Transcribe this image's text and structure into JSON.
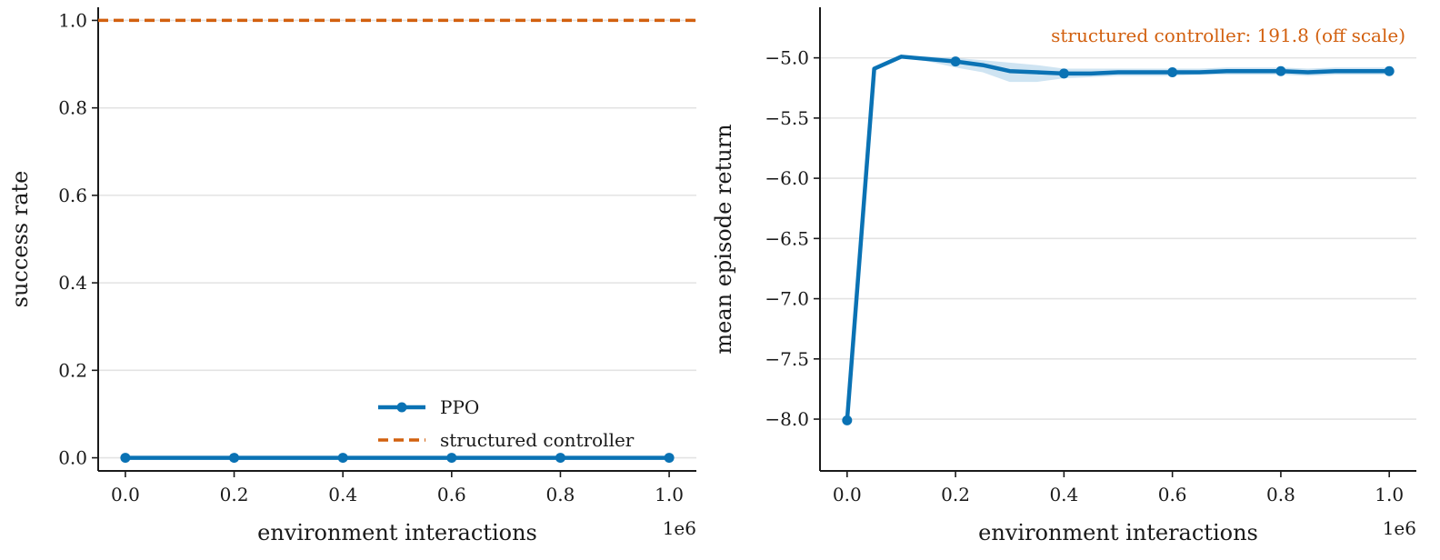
{
  "colors": {
    "ppo": "#0a72b4",
    "structured": "#d2600f",
    "band": "#a8cde8"
  },
  "chart_data": [
    {
      "type": "line",
      "xlabel": "environment interactions",
      "ylabel": "success rate",
      "x_offset_label": "1e6",
      "xlim": [
        -0.05,
        1.05
      ],
      "ylim": [
        -0.03,
        1.03
      ],
      "x_ticks": [
        0.0,
        0.2,
        0.4,
        0.6,
        0.8,
        1.0
      ],
      "x_tick_labels": [
        "0.0",
        "0.2",
        "0.4",
        "0.6",
        "0.8",
        "1.0"
      ],
      "y_ticks": [
        0.0,
        0.2,
        0.4,
        0.6,
        0.8,
        1.0
      ],
      "y_tick_labels": [
        "0.0",
        "0.2",
        "0.4",
        "0.6",
        "0.8",
        "1.0"
      ],
      "grid": "horizontal",
      "legend_position": "lower-right",
      "series": [
        {
          "name": "PPO",
          "style": "solid-markers",
          "x": [
            0.0,
            0.05,
            0.1,
            0.15,
            0.2,
            0.25,
            0.3,
            0.35,
            0.4,
            0.45,
            0.5,
            0.55,
            0.6,
            0.65,
            0.7,
            0.75,
            0.8,
            0.85,
            0.9,
            0.95,
            1.0
          ],
          "y": [
            0,
            0,
            0,
            0,
            0,
            0,
            0,
            0,
            0,
            0,
            0,
            0,
            0,
            0,
            0,
            0,
            0,
            0,
            0,
            0,
            0
          ],
          "marker_x": [
            0.0,
            0.2,
            0.4,
            0.6,
            0.8,
            1.0
          ]
        },
        {
          "name": "structured controller",
          "style": "dashed-hline",
          "y": 1.0
        }
      ]
    },
    {
      "type": "line",
      "xlabel": "environment interactions",
      "ylabel": "mean episode return",
      "x_offset_label": "1e6",
      "xlim": [
        -0.05,
        1.05
      ],
      "ylim": [
        -8.43,
        -4.58
      ],
      "x_ticks": [
        0.0,
        0.2,
        0.4,
        0.6,
        0.8,
        1.0
      ],
      "x_tick_labels": [
        "0.0",
        "0.2",
        "0.4",
        "0.6",
        "0.8",
        "1.0"
      ],
      "y_ticks": [
        -5.0,
        -5.5,
        -6.0,
        -6.5,
        -7.0,
        -7.5,
        -8.0
      ],
      "y_tick_labels": [
        "−5.0",
        "−5.5",
        "−6.0",
        "−6.5",
        "−7.0",
        "−7.5",
        "−8.0"
      ],
      "grid": "horizontal",
      "annotation": "structured controller: 191.8 (off scale)",
      "series": [
        {
          "name": "PPO",
          "style": "solid-markers-band",
          "x": [
            0.0,
            0.05,
            0.1,
            0.15,
            0.2,
            0.25,
            0.3,
            0.35,
            0.4,
            0.45,
            0.5,
            0.55,
            0.6,
            0.65,
            0.7,
            0.75,
            0.8,
            0.85,
            0.9,
            0.95,
            1.0
          ],
          "y": [
            -8.01,
            -5.09,
            -4.99,
            -5.01,
            -5.03,
            -5.06,
            -5.11,
            -5.12,
            -5.13,
            -5.13,
            -5.12,
            -5.12,
            -5.12,
            -5.12,
            -5.11,
            -5.11,
            -5.11,
            -5.12,
            -5.11,
            -5.11,
            -5.11
          ],
          "band_low": [
            -8.01,
            -5.1,
            -5.0,
            -5.03,
            -5.08,
            -5.12,
            -5.2,
            -5.2,
            -5.17,
            -5.16,
            -5.15,
            -5.15,
            -5.15,
            -5.14,
            -5.14,
            -5.14,
            -5.14,
            -5.15,
            -5.14,
            -5.14,
            -5.14
          ],
          "band_high": [
            -8.01,
            -5.08,
            -4.98,
            -4.99,
            -5.0,
            -5.02,
            -5.04,
            -5.06,
            -5.09,
            -5.09,
            -5.09,
            -5.09,
            -5.09,
            -5.09,
            -5.08,
            -5.08,
            -5.08,
            -5.09,
            -5.08,
            -5.08,
            -5.08
          ],
          "marker_x": [
            0.0,
            0.2,
            0.4,
            0.6,
            0.8,
            1.0
          ]
        }
      ]
    }
  ]
}
